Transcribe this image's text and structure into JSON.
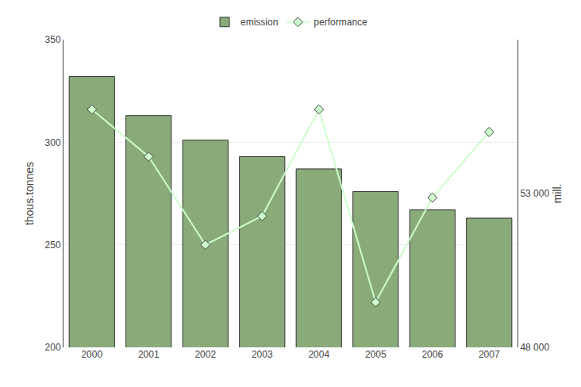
{
  "chart_data": {
    "type": "bar",
    "categories": [
      "2000",
      "2001",
      "2002",
      "2003",
      "2004",
      "2005",
      "2006",
      "2007"
    ],
    "series": [
      {
        "name": "emission",
        "type": "bar",
        "color": "#8aaa7a",
        "values": [
          332,
          313,
          301,
          293,
          287,
          276,
          267,
          263
        ]
      },
      {
        "name": "performance",
        "type": "line",
        "axis": "y2",
        "color": "#ccffcc",
        "marker": "diamond",
        "line_style": "solid",
        "values": [
          55733.333333333336,
          54200,
          51333.333333333336,
          52266.666666666664,
          55733.333333333336,
          49466.666666666664,
          52866.666666666664,
          55000
        ]
      }
    ],
    "ylabel": "thous.tonnes",
    "y2label": "mill.",
    "ylim": [
      200,
      350
    ],
    "yticks": [
      200,
      250,
      300,
      350
    ],
    "y2lim": [
      48000,
      58000
    ],
    "y2ticks": [
      {
        "value": 48000,
        "label": "48 000"
      },
      {
        "value": 53000,
        "label": "53 000"
      }
    ],
    "grid": true,
    "legend": "upper center"
  }
}
